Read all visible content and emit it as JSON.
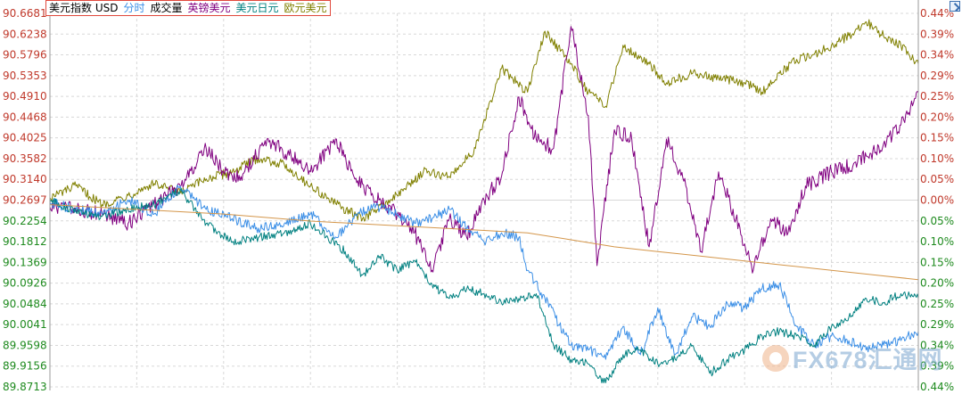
{
  "legend": {
    "items": [
      {
        "label": "美元指数 USD",
        "color": "#000000"
      },
      {
        "label": "分时",
        "color": "#3a8ee6"
      },
      {
        "label": "成交量",
        "color": "#000000"
      },
      {
        "label": "英镑美元",
        "color": "#800080"
      },
      {
        "label": "美元日元",
        "color": "#008080"
      },
      {
        "label": "欧元美元",
        "color": "#808000"
      }
    ]
  },
  "watermark": {
    "text": "FX678汇通网"
  },
  "colors": {
    "grid": "#d8d8d8",
    "axis_left_upper": "#c0392b",
    "axis_left_lower": "#1e8a1e",
    "axis_right_upper": "#c0392b",
    "axis_right_lower": "#1e8a1e",
    "usd": "#3a8ee6",
    "gbpusd": "#800080",
    "usdjpy": "#008080",
    "eurusd": "#808000",
    "avg": "#d4964a"
  },
  "chart_data": {
    "type": "line",
    "left_axis": {
      "ticks": [
        "90.6681",
        "90.6238",
        "90.5796",
        "90.5353",
        "90.4910",
        "90.4468",
        "90.4025",
        "90.3582",
        "90.3140",
        "90.2697",
        "90.2254",
        "90.1812",
        "90.1369",
        "90.0926",
        "90.0484",
        "90.0041",
        "89.9598",
        "89.9156",
        "89.8713"
      ],
      "reference": "90.2697",
      "ylim": [
        89.8713,
        90.6681
      ]
    },
    "right_axis": {
      "ticks": [
        "0.44%",
        "0.39%",
        "0.34%",
        "0.29%",
        "0.25%",
        "0.20%",
        "0.15%",
        "0.10%",
        "0.05%",
        "0.00%",
        "0.05%",
        "0.10%",
        "0.15%",
        "0.20%",
        "0.25%",
        "0.29%",
        "0.34%",
        "0.39%",
        "0.44%"
      ]
    },
    "xlim": [
      0,
      100
    ],
    "series": [
      {
        "id": "eurusd",
        "name": "欧元美元",
        "color": "#808000",
        "x": [
          0,
          3,
          6,
          9,
          12,
          15,
          18,
          21,
          24,
          27,
          30,
          33,
          36,
          40,
          43,
          46,
          49,
          52,
          55,
          57,
          60,
          62,
          64,
          66,
          69,
          71,
          74,
          77,
          80,
          82,
          84,
          86,
          88,
          90,
          92,
          94,
          96,
          98,
          100
        ],
        "y": [
          90.275,
          90.3,
          90.26,
          90.28,
          90.305,
          90.285,
          90.315,
          90.33,
          90.36,
          90.345,
          90.3,
          90.26,
          90.23,
          90.28,
          90.33,
          90.32,
          90.38,
          90.55,
          90.5,
          90.63,
          90.56,
          90.5,
          90.47,
          90.6,
          90.56,
          90.52,
          90.54,
          90.53,
          90.52,
          90.5,
          90.54,
          90.57,
          90.58,
          90.6,
          90.62,
          90.65,
          90.62,
          90.6,
          90.56
        ]
      },
      {
        "id": "gbpusd",
        "name": "英镑美元",
        "color": "#800080",
        "x": [
          0,
          3,
          6,
          9,
          12,
          15,
          18,
          20,
          22,
          25,
          28,
          30,
          33,
          35,
          37,
          40,
          42,
          44,
          46,
          48,
          50,
          52,
          54,
          56,
          58,
          60,
          62,
          63,
          65,
          67,
          69,
          71,
          73,
          75,
          77,
          79,
          81,
          83,
          85,
          87,
          90,
          93,
          96,
          98,
          100
        ],
        "y": [
          90.255,
          90.25,
          90.24,
          90.22,
          90.26,
          90.3,
          90.38,
          90.33,
          90.32,
          90.4,
          90.36,
          90.33,
          90.4,
          90.32,
          90.28,
          90.24,
          90.2,
          90.12,
          90.23,
          90.19,
          90.27,
          90.32,
          90.49,
          90.4,
          90.38,
          90.64,
          90.45,
          90.13,
          90.42,
          90.4,
          90.17,
          90.4,
          90.31,
          90.16,
          90.33,
          90.23,
          90.12,
          90.23,
          90.2,
          90.3,
          90.33,
          90.35,
          90.39,
          90.43,
          90.5
        ]
      },
      {
        "id": "usd",
        "name": "美元指数 USD",
        "color": "#3a8ee6",
        "x": [
          0,
          3,
          6,
          9,
          12,
          15,
          18,
          21,
          24,
          27,
          30,
          33,
          35,
          37,
          40,
          42,
          44,
          46,
          48,
          50,
          52,
          54,
          55,
          57,
          60,
          62,
          64,
          66,
          68,
          70,
          72,
          74,
          76,
          78,
          80,
          82,
          84,
          86,
          88,
          90,
          92,
          94,
          96,
          98,
          100
        ],
        "y": [
          90.265,
          90.25,
          90.24,
          90.27,
          90.24,
          90.3,
          90.25,
          90.23,
          90.21,
          90.22,
          90.24,
          90.19,
          90.23,
          90.26,
          90.24,
          90.22,
          90.23,
          90.25,
          90.21,
          90.18,
          90.2,
          90.19,
          90.12,
          90.06,
          89.96,
          89.95,
          89.93,
          90.0,
          89.94,
          90.04,
          89.94,
          90.02,
          90.0,
          90.05,
          90.04,
          90.08,
          90.09,
          90.0,
          89.96,
          89.98,
          89.97,
          89.95,
          89.96,
          89.97,
          89.99
        ]
      },
      {
        "id": "usdjpy",
        "name": "美元日元",
        "color": "#008080",
        "x": [
          0,
          3,
          6,
          9,
          12,
          15,
          18,
          21,
          24,
          27,
          30,
          32,
          34,
          36,
          38,
          40,
          42,
          44,
          46,
          48,
          50,
          52,
          54,
          56,
          58,
          60,
          62,
          64,
          66,
          68,
          70,
          72,
          74,
          76,
          78,
          80,
          82,
          84,
          86,
          88,
          90,
          92,
          94,
          96,
          98,
          100
        ],
        "y": [
          90.27,
          90.245,
          90.235,
          90.25,
          90.26,
          90.29,
          90.22,
          90.18,
          90.19,
          90.2,
          90.22,
          90.19,
          90.16,
          90.11,
          90.15,
          90.12,
          90.14,
          90.09,
          90.06,
          90.08,
          90.07,
          90.05,
          90.06,
          90.07,
          89.96,
          89.93,
          89.92,
          89.88,
          89.94,
          89.95,
          89.92,
          89.93,
          89.96,
          89.9,
          89.93,
          89.95,
          89.98,
          89.99,
          89.98,
          89.96,
          90.0,
          90.02,
          90.06,
          90.05,
          90.07,
          90.06
        ]
      },
      {
        "id": "avg",
        "name": "",
        "color": "#d4964a",
        "x": [
          0,
          10,
          20,
          30,
          40,
          50,
          55,
          60,
          65,
          70,
          75,
          80,
          85,
          90,
          95,
          100
        ],
        "y": [
          90.26,
          90.25,
          90.24,
          90.225,
          90.215,
          90.205,
          90.2,
          90.185,
          90.17,
          90.16,
          90.15,
          90.14,
          90.13,
          90.12,
          90.11,
          90.1
        ]
      }
    ]
  }
}
